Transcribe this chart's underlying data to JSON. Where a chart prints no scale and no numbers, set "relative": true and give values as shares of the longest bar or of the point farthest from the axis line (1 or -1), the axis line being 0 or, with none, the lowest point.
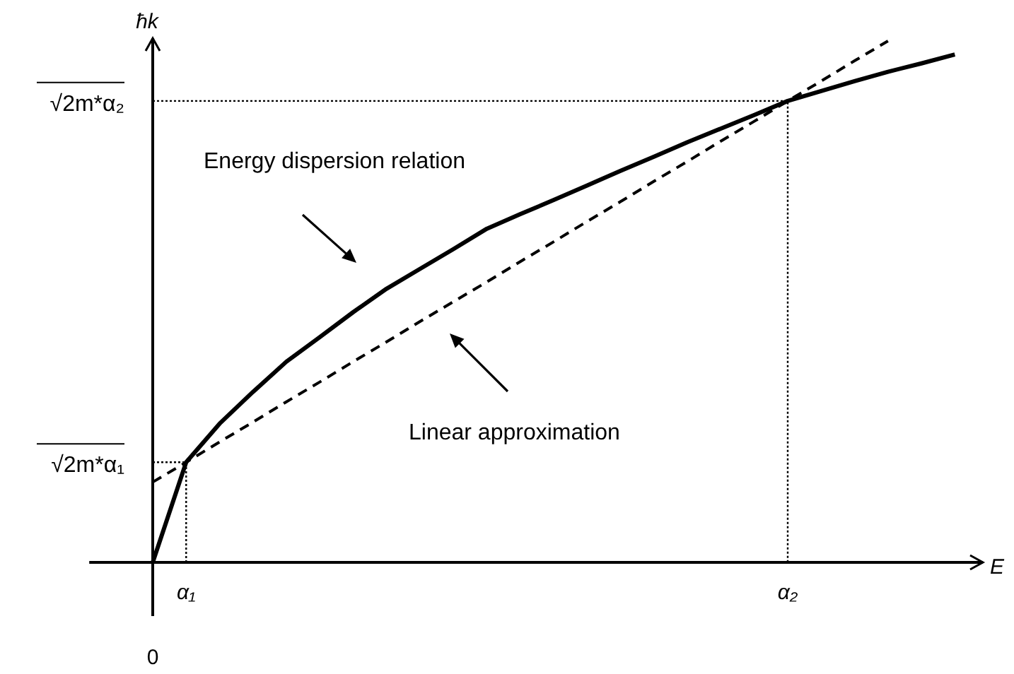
{
  "chart_data": {
    "type": "line",
    "relative": true,
    "xlabel": "E",
    "ylabel": "ħk",
    "categories": [
      null,
      "α₁",
      null,
      null,
      null,
      null,
      null,
      null,
      null,
      null,
      null,
      null,
      null,
      null,
      null,
      null,
      null,
      null,
      null,
      "α₂",
      null,
      null,
      null,
      null,
      null
    ],
    "series": [
      {
        "color": "#000000",
        "line_style": "solid",
        "values": [
          0,
          0.192,
          0.266,
          0.327,
          0.385,
          0.432,
          0.48,
          0.525,
          0.563,
          0.601,
          0.64,
          0.668,
          0.695,
          0.723,
          0.751,
          0.778,
          0.806,
          0.832,
          0.858,
          0.885,
          0.904,
          0.923,
          0.941,
          0.957,
          0.974
        ]
      },
      {
        "color": "#000000",
        "line_style": "dashed",
        "values": [
          0.154,
          0.192,
          0.231,
          0.269,
          0.308,
          0.346,
          0.385,
          0.423,
          0.462,
          0.5,
          0.538,
          0.577,
          0.615,
          0.654,
          0.692,
          0.731,
          0.769,
          0.808,
          0.846,
          0.885,
          0.923,
          0.962,
          1,
          null,
          null
        ]
      }
    ],
    "annotations": [
      "Energy dispersion relation",
      "Linear approximation",
      "0",
      "√2m*α₁",
      "√2m*α₂"
    ]
  }
}
